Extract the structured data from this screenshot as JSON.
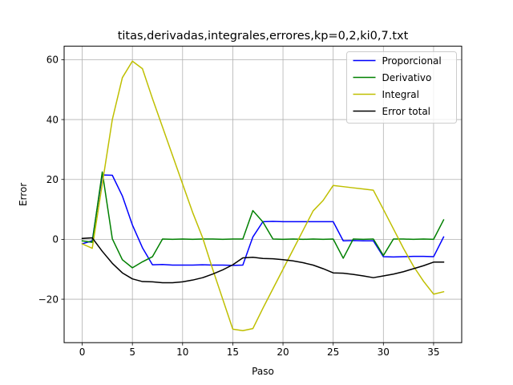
{
  "chart_data": {
    "type": "line",
    "title": "titas,derivadas,integrales,errores,kp=0,2,ki0,7.txt",
    "xlabel": "Paso",
    "ylabel": "Error",
    "xlim": [
      -1.8,
      37.8
    ],
    "ylim": [
      -34.5,
      64.5
    ],
    "xticks": [
      0,
      5,
      10,
      15,
      20,
      25,
      30,
      35
    ],
    "yticks": [
      -20,
      0,
      20,
      40,
      60
    ],
    "grid": true,
    "legend_position": "upper-right",
    "x": [
      0,
      1,
      2,
      3,
      4,
      5,
      6,
      7,
      8,
      9,
      10,
      11,
      12,
      13,
      14,
      15,
      16,
      17,
      18,
      19,
      20,
      21,
      22,
      23,
      24,
      25,
      26,
      27,
      28,
      29,
      30,
      31,
      32,
      33,
      34,
      35,
      36
    ],
    "series": [
      {
        "name": "Proporcional",
        "color": "#0000ff",
        "values": [
          -1.5,
          -0.5,
          21.5,
          21.4,
          14.5,
          4.8,
          -2.8,
          -8.5,
          -8.4,
          -8.6,
          -8.6,
          -8.6,
          -8.5,
          -8.6,
          -8.6,
          -8.7,
          -8.6,
          0.8,
          5.9,
          6.0,
          5.9,
          5.9,
          5.9,
          5.9,
          5.9,
          5.9,
          -0.5,
          -0.4,
          -0.5,
          -0.5,
          -5.8,
          -5.9,
          -5.8,
          -5.7,
          -5.7,
          -5.8,
          0.8
        ]
      },
      {
        "name": "Derivativo",
        "color": "#008000",
        "values": [
          -0.5,
          -1.0,
          22.5,
          0.2,
          -6.8,
          -9.5,
          -7.5,
          -5.8,
          0.1,
          0.0,
          0.1,
          0.0,
          0.1,
          0.1,
          0.0,
          0.1,
          0.1,
          9.6,
          5.8,
          0.1,
          0.0,
          0.1,
          0.0,
          0.1,
          0.0,
          0.1,
          -6.3,
          0.1,
          0.0,
          0.1,
          -5.4,
          0.1,
          0.1,
          0.0,
          0.1,
          0.0,
          6.5
        ]
      },
      {
        "name": "Integral",
        "color": "#bfbf00",
        "values": [
          -1.5,
          -3.0,
          18.5,
          40.0,
          54.0,
          59.5,
          57.0,
          47.0,
          37.5,
          28.0,
          18.5,
          9.0,
          0.5,
          -10.0,
          -20.0,
          -30.0,
          -30.5,
          -29.8,
          -23.0,
          -16.5,
          -10.0,
          -3.5,
          3.0,
          9.5,
          13.0,
          18.0,
          17.6,
          17.2,
          16.8,
          16.4,
          10.0,
          3.5,
          -3.0,
          -9.0,
          -14.0,
          -18.3,
          -17.5
        ]
      },
      {
        "name": "Error total",
        "color": "#000000",
        "values": [
          0.3,
          0.5,
          -4.0,
          -8.0,
          -11.2,
          -13.2,
          -14.1,
          -14.2,
          -14.5,
          -14.5,
          -14.2,
          -13.6,
          -12.8,
          -11.6,
          -10.2,
          -8.5,
          -6.2,
          -6.0,
          -6.4,
          -6.5,
          -6.8,
          -7.2,
          -7.8,
          -8.6,
          -9.8,
          -11.2,
          -11.3,
          -11.7,
          -12.2,
          -12.8,
          -12.2,
          -11.6,
          -10.8,
          -9.8,
          -8.8,
          -7.6,
          -7.6
        ]
      }
    ]
  }
}
